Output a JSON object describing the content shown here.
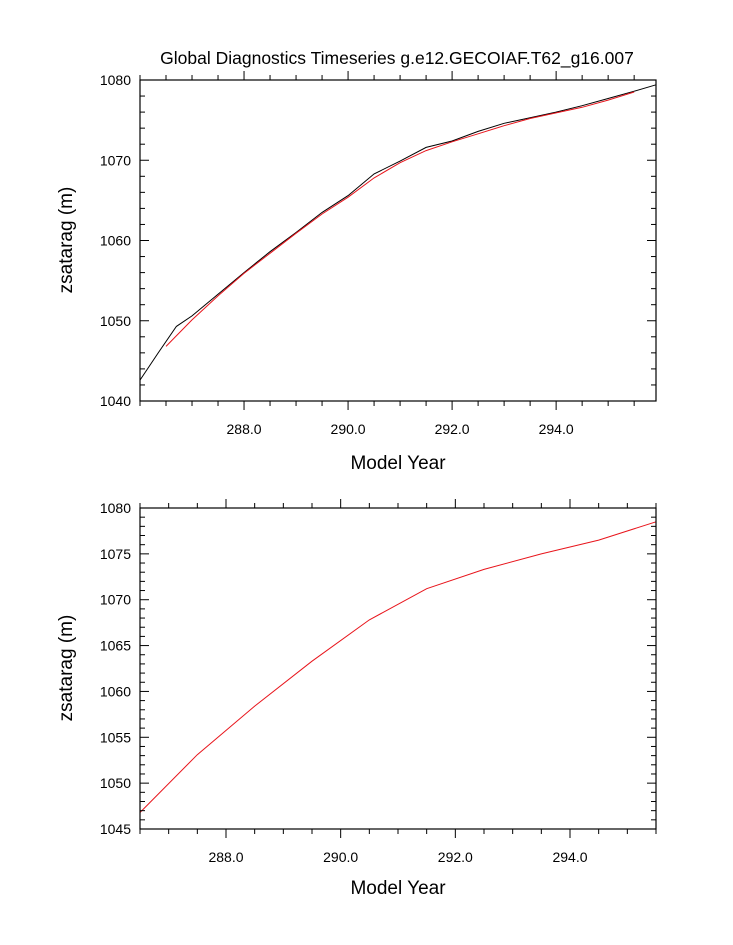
{
  "colors": {
    "black_series": "#000000",
    "red_series": "#e8141b"
  },
  "chart_data": [
    {
      "type": "line",
      "title": "Global Diagnostics Timeseries g.e12.GECOIAF.T62_g16.007",
      "xlabel": "Model Year",
      "ylabel": "zsatarag (m)",
      "xlim": [
        286.0,
        295.92
      ],
      "ylim": [
        1040,
        1080
      ],
      "xticks": [
        "288.0",
        "290.0",
        "292.0",
        "294.0"
      ],
      "yticks": [
        "1040",
        "1050",
        "1060",
        "1070",
        "1080"
      ],
      "series": [
        {
          "color": "#000000",
          "x": [
            286.0,
            286.35,
            286.7,
            287.0,
            287.5,
            288.0,
            288.5,
            289.0,
            289.5,
            290.0,
            290.5,
            291.0,
            291.5,
            292.0,
            292.5,
            293.0,
            293.5,
            294.0,
            294.5,
            295.0,
            295.5,
            295.92
          ],
          "y": [
            1042.6,
            1046.0,
            1049.3,
            1050.6,
            1053.3,
            1056.0,
            1058.6,
            1061.0,
            1063.5,
            1065.6,
            1068.3,
            1069.9,
            1071.6,
            1072.4,
            1073.6,
            1074.6,
            1075.3,
            1076.0,
            1076.8,
            1077.7,
            1078.6,
            1079.4
          ]
        },
        {
          "color": "#e8141b",
          "x": [
            286.5,
            287.0,
            287.5,
            288.0,
            288.5,
            289.0,
            289.5,
            290.0,
            290.5,
            291.0,
            291.5,
            292.0,
            292.5,
            293.0,
            293.5,
            294.0,
            294.5,
            295.0,
            295.5
          ],
          "y": [
            1046.8,
            1050.1,
            1053.1,
            1055.9,
            1058.4,
            1060.9,
            1063.3,
            1065.4,
            1067.8,
            1069.7,
            1071.2,
            1072.3,
            1073.3,
            1074.3,
            1075.2,
            1075.9,
            1076.6,
            1077.5,
            1078.5
          ]
        }
      ]
    },
    {
      "type": "line",
      "xlabel": "Model Year",
      "ylabel": "zsatarag (m)",
      "xlim": [
        286.5,
        295.5
      ],
      "ylim": [
        1045,
        1080
      ],
      "xticks": [
        "288.0",
        "290.0",
        "292.0",
        "294.0"
      ],
      "yticks": [
        "1045",
        "1050",
        "1055",
        "1060",
        "1065",
        "1070",
        "1075",
        "1080"
      ],
      "series": [
        {
          "color": "#e8141b",
          "x": [
            286.5,
            287.5,
            288.5,
            289.5,
            290.5,
            291.5,
            292.5,
            293.5,
            294.5,
            295.5
          ],
          "y": [
            1046.8,
            1053.1,
            1058.4,
            1063.3,
            1067.8,
            1071.2,
            1073.3,
            1075.0,
            1076.5,
            1078.5
          ]
        }
      ]
    }
  ]
}
